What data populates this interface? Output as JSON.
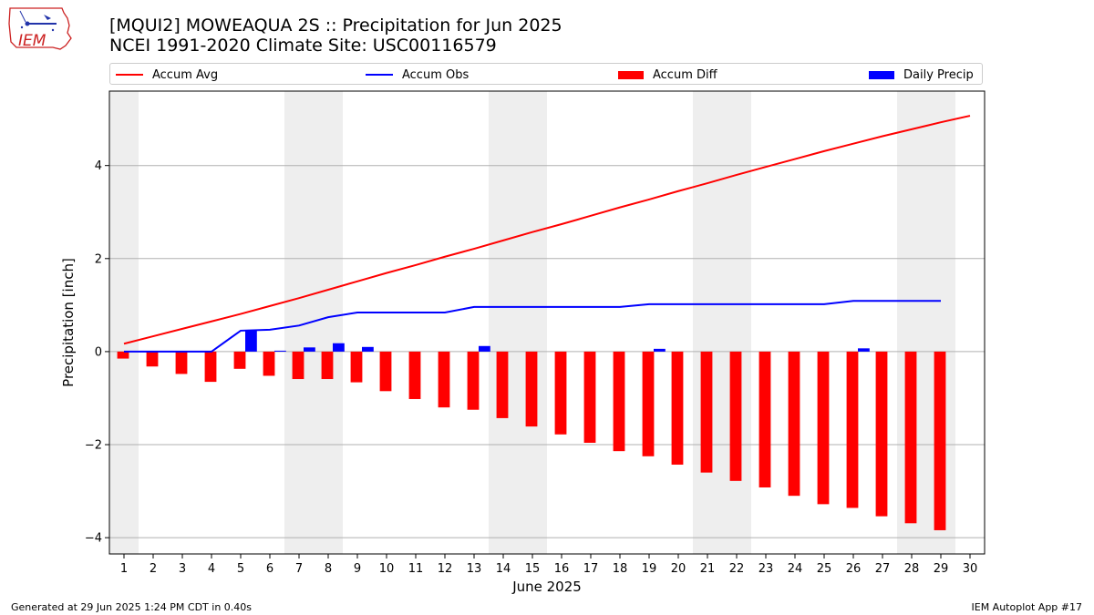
{
  "header": {
    "title": "[MQUI2] MOWEAQUA 2S :: Precipitation for Jun 2025",
    "subtitle": "NCEI 1991-2020 Climate Site: USC00116579"
  },
  "logo": {
    "text": "IEM"
  },
  "legend": {
    "accum_avg": "Accum Avg",
    "accum_obs": "Accum Obs",
    "accum_diff": "Accum Diff",
    "daily_precip": "Daily Precip"
  },
  "footer": {
    "generated": "Generated at 29 Jun 2025 1:24 PM CDT in 0.40s",
    "app": "IEM Autoplot App #17"
  },
  "colors": {
    "avg": "#ff0000",
    "obs": "#0000ff",
    "diff": "#ff0000",
    "daily": "#0000ff",
    "weekend": "#eeeeee",
    "grid": "#b0b0b0"
  },
  "chart_data": {
    "type": "bar",
    "xlabel": "June 2025",
    "ylabel": "Precipitation [inch]",
    "xlim": [
      0.5,
      30.5
    ],
    "ylim": [
      -4.35,
      5.6
    ],
    "grid": true,
    "legend_position": "top",
    "x_ticks": [
      1,
      2,
      3,
      4,
      5,
      6,
      7,
      8,
      9,
      10,
      11,
      12,
      13,
      14,
      15,
      16,
      17,
      18,
      19,
      20,
      21,
      22,
      23,
      24,
      25,
      26,
      27,
      28,
      29,
      30
    ],
    "y_ticks": [
      -4,
      -2,
      0,
      2,
      4
    ],
    "weekend_days": [
      1,
      7,
      8,
      14,
      15,
      21,
      22,
      28,
      29
    ],
    "days": [
      1,
      2,
      3,
      4,
      5,
      6,
      7,
      8,
      9,
      10,
      11,
      12,
      13,
      14,
      15,
      16,
      17,
      18,
      19,
      20,
      21,
      22,
      23,
      24,
      25,
      26,
      27,
      28,
      29,
      30
    ],
    "series": [
      {
        "name": "Accum Avg",
        "kind": "line",
        "values": [
          0.17,
          0.33,
          0.49,
          0.65,
          0.81,
          0.98,
          1.15,
          1.33,
          1.51,
          1.69,
          1.86,
          2.04,
          2.21,
          2.39,
          2.57,
          2.74,
          2.92,
          3.1,
          3.27,
          3.45,
          3.62,
          3.8,
          3.97,
          4.14,
          4.31,
          4.47,
          4.63,
          4.78,
          4.93,
          5.07
        ]
      },
      {
        "name": "Accum Obs",
        "kind": "line",
        "values": [
          0.0,
          0.0,
          0.0,
          0.0,
          0.45,
          0.47,
          0.56,
          0.74,
          0.84,
          0.84,
          0.84,
          0.84,
          0.96,
          0.96,
          0.96,
          0.96,
          0.96,
          0.96,
          1.02,
          1.02,
          1.02,
          1.02,
          1.02,
          1.02,
          1.02,
          1.09,
          1.09,
          1.09,
          1.09
        ]
      },
      {
        "name": "Accum Diff",
        "kind": "bar",
        "values": [
          -0.15,
          -0.32,
          -0.48,
          -0.65,
          -0.37,
          -0.52,
          -0.59,
          -0.59,
          -0.66,
          -0.85,
          -1.02,
          -1.2,
          -1.25,
          -1.43,
          -1.61,
          -1.78,
          -1.96,
          -2.14,
          -2.25,
          -2.43,
          -2.6,
          -2.78,
          -2.92,
          -3.1,
          -3.28,
          -3.36,
          -3.54,
          -3.69,
          -3.84
        ]
      },
      {
        "name": "Daily Precip",
        "kind": "bar",
        "values": [
          0,
          0,
          0,
          0,
          0.45,
          0.02,
          0.09,
          0.18,
          0.1,
          0,
          0,
          0,
          0.12,
          0,
          0,
          0,
          0,
          0,
          0.06,
          0,
          0,
          0,
          0,
          0,
          0,
          0.07,
          0,
          0,
          0
        ]
      }
    ]
  }
}
